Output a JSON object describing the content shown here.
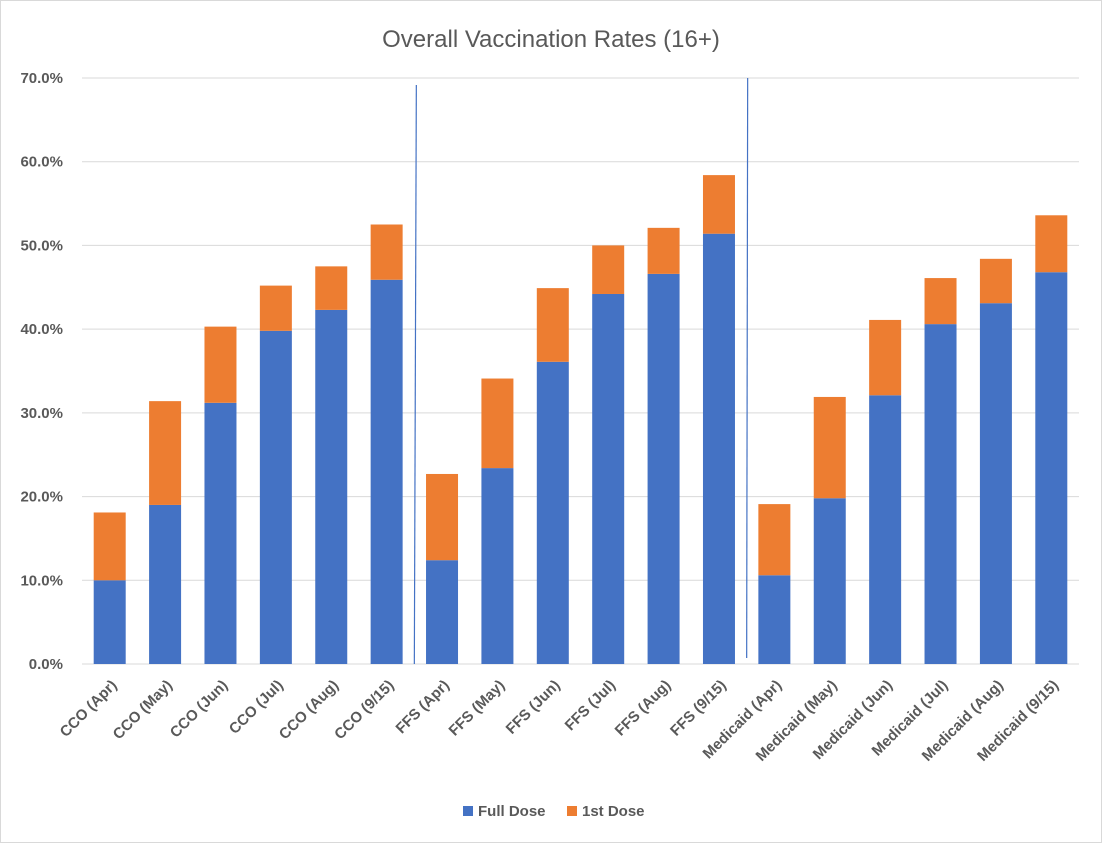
{
  "chart_data": {
    "type": "bar",
    "stacked": true,
    "title": "Overall Vaccination  Rates (16+)",
    "xlabel": "",
    "ylabel": "",
    "ylim": [
      0,
      70
    ],
    "yticks": [
      "0.0%",
      "10.0%",
      "20.0%",
      "30.0%",
      "40.0%",
      "50.0%",
      "60.0%",
      "70.0%"
    ],
    "grid": true,
    "legend_position": "bottom",
    "categories": [
      "CCO (Apr)",
      "CCO (May)",
      "CCO (Jun)",
      "CCO (Jul)",
      "CCO (Aug)",
      "CCO (9/15)",
      "FFS (Apr)",
      "FFS (May)",
      "FFS (Jun)",
      "FFS (Jul)",
      "FFS (Aug)",
      "FFS (9/15)",
      "Medicaid (Apr)",
      "Medicaid (May)",
      "Medicaid (Jun)",
      "Medicaid (Jul)",
      "Medicaid (Aug)",
      "Medicaid (9/15)"
    ],
    "series": [
      {
        "name": "Full Dose",
        "color": "#4472c4",
        "values": [
          10.0,
          19.0,
          31.2,
          39.8,
          42.3,
          45.9,
          12.4,
          23.4,
          36.1,
          44.2,
          46.6,
          51.4,
          10.6,
          19.8,
          32.1,
          40.6,
          43.1,
          46.8
        ]
      },
      {
        "name": "1st Dose",
        "color": "#ed7d31",
        "values": [
          8.1,
          12.4,
          9.1,
          5.4,
          5.2,
          6.6,
          10.3,
          10.7,
          8.8,
          5.8,
          5.5,
          7.0,
          8.5,
          12.1,
          9.0,
          5.5,
          5.3,
          6.8
        ]
      }
    ],
    "separators_after_index": [
      5,
      11
    ]
  }
}
